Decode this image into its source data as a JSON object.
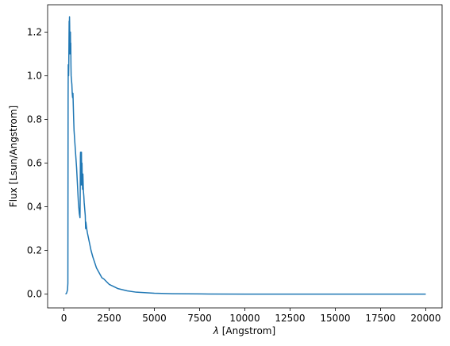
{
  "chart_data": {
    "type": "line",
    "title": "",
    "xlabel_symbol": "λ",
    "xlabel_rest": " [Angstrom]",
    "ylabel": "Flux [Lsun/Angstrom]",
    "xlim": [
      -900,
      20900
    ],
    "ylim": [
      -0.063,
      1.325
    ],
    "grid": false,
    "x_ticks": [
      0,
      2500,
      5000,
      7500,
      10000,
      12500,
      15000,
      17500,
      20000
    ],
    "x_tick_labels": [
      "0",
      "2500",
      "5000",
      "7500",
      "10000",
      "12500",
      "15000",
      "17500",
      "20000"
    ],
    "y_ticks": [
      0.0,
      0.2,
      0.4,
      0.6,
      0.8,
      1.0,
      1.2
    ],
    "y_tick_labels": [
      "0.0",
      "0.2",
      "0.4",
      "0.6",
      "0.8",
      "1.0",
      "1.2"
    ],
    "series": [
      {
        "color": "#1f77b4",
        "x": [
          91,
          150,
          200,
          220,
          232,
          240,
          250,
          260,
          270,
          280,
          290,
          300,
          310,
          320,
          330,
          340,
          350,
          360,
          370,
          380,
          390,
          400,
          420,
          440,
          460,
          480,
          500,
          520,
          540,
          560,
          600,
          650,
          700,
          750,
          800,
          850,
          890,
          900,
          912,
          920,
          930,
          940,
          950,
          960,
          970,
          980,
          990,
          1000,
          1010,
          1020,
          1030,
          1040,
          1050,
          1060,
          1070,
          1080,
          1100,
          1120,
          1140,
          1160,
          1180,
          1200,
          1216,
          1230,
          1260,
          1300,
          1400,
          1500,
          1600,
          1800,
          2000,
          2100,
          2200,
          2500,
          3000,
          3500,
          4000,
          5000,
          6000,
          8000,
          10000,
          12500,
          15000,
          17500,
          20000
        ],
        "y": [
          0.0,
          0.005,
          0.02,
          0.05,
          0.9,
          1.05,
          1.02,
          1.0,
          1.05,
          1.15,
          1.25,
          1.22,
          1.27,
          1.22,
          1.1,
          1.2,
          1.12,
          1.2,
          1.1,
          1.15,
          1.05,
          1.0,
          0.98,
          0.96,
          0.92,
          0.9,
          0.92,
          0.86,
          0.8,
          0.75,
          0.7,
          0.64,
          0.58,
          0.5,
          0.42,
          0.37,
          0.35,
          0.45,
          0.63,
          0.65,
          0.6,
          0.55,
          0.5,
          0.6,
          0.65,
          0.55,
          0.5,
          0.6,
          0.55,
          0.52,
          0.48,
          0.5,
          0.55,
          0.52,
          0.49,
          0.47,
          0.45,
          0.42,
          0.4,
          0.38,
          0.36,
          0.3,
          0.33,
          0.32,
          0.3,
          0.28,
          0.24,
          0.2,
          0.17,
          0.12,
          0.09,
          0.075,
          0.07,
          0.045,
          0.025,
          0.015,
          0.009,
          0.004,
          0.002,
          0.0008,
          0.0003,
          0.0001,
          5e-05,
          2e-05,
          1e-05
        ]
      }
    ]
  }
}
